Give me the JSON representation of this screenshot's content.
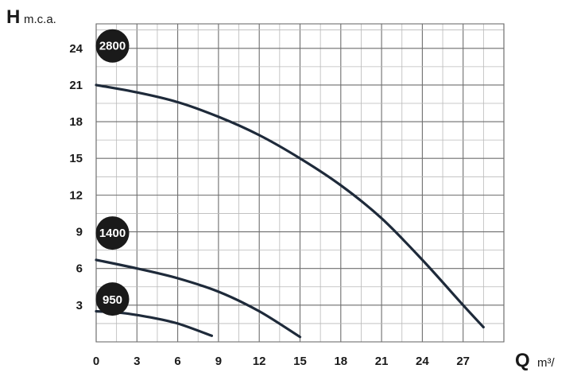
{
  "chart_data": {
    "type": "line",
    "x_axis": {
      "label": "Q",
      "unit": "m³/",
      "range": [
        0,
        30
      ],
      "ticks": [
        0,
        3,
        6,
        9,
        12,
        15,
        18,
        21,
        24,
        27
      ],
      "minor_step": 1.5
    },
    "y_axis": {
      "label": "H",
      "unit": "m.c.a.",
      "range": [
        0,
        26
      ],
      "ticks": [
        3,
        6,
        9,
        12,
        15,
        18,
        21,
        24
      ],
      "minor_step": 1.5
    },
    "grid": true,
    "series": [
      {
        "name": "2800",
        "badge_at": [
          1.2,
          24.2
        ],
        "points": [
          [
            0,
            21
          ],
          [
            3,
            20.4
          ],
          [
            6,
            19.6
          ],
          [
            9,
            18.4
          ],
          [
            12,
            16.9
          ],
          [
            15,
            15.0
          ],
          [
            18,
            12.8
          ],
          [
            21,
            10.1
          ],
          [
            24,
            6.7
          ],
          [
            27,
            3.0
          ],
          [
            28.5,
            1.2
          ]
        ]
      },
      {
        "name": "1400",
        "badge_at": [
          1.2,
          8.9
        ],
        "points": [
          [
            0,
            6.7
          ],
          [
            3,
            6.0
          ],
          [
            6,
            5.2
          ],
          [
            9,
            4.1
          ],
          [
            12,
            2.5
          ],
          [
            15,
            0.4
          ]
        ]
      },
      {
        "name": "950",
        "badge_at": [
          1.2,
          3.5
        ],
        "points": [
          [
            0,
            2.5
          ],
          [
            2,
            2.35
          ],
          [
            4,
            2.0
          ],
          [
            6,
            1.5
          ],
          [
            8.5,
            0.5
          ]
        ]
      }
    ],
    "colors": {
      "curve": "#1e2a3a",
      "badge": "#1a1a1a",
      "grid_major": "#6e6e6e",
      "grid_minor": "#b9b9b9"
    }
  }
}
